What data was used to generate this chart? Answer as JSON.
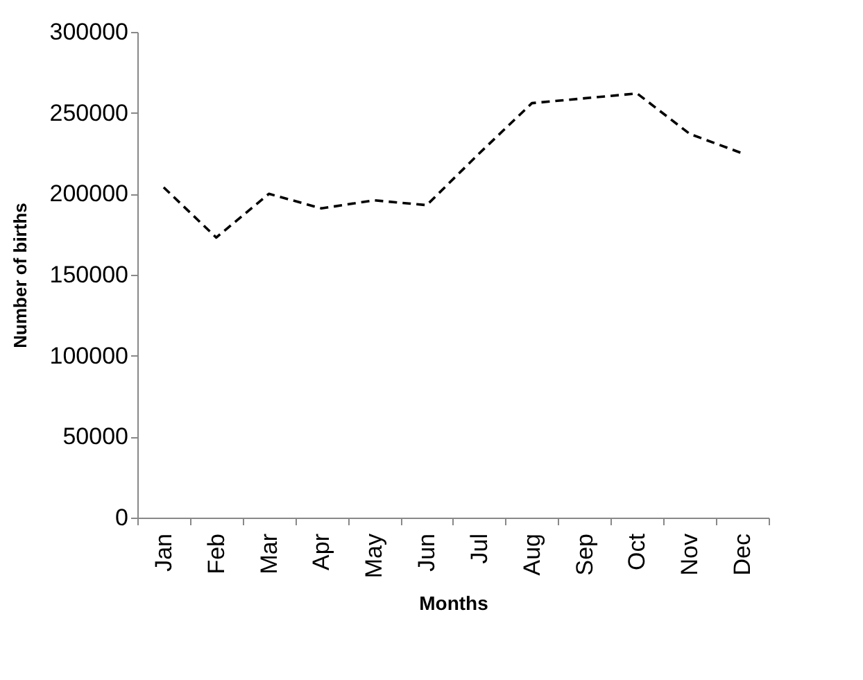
{
  "chart_data": {
    "type": "line",
    "xlabel": "Months",
    "ylabel": "Number of births",
    "categories": [
      "Jan",
      "Feb",
      "Mar",
      "Apr",
      "May",
      "Jun",
      "Jul",
      "Aug",
      "Sep",
      "Oct",
      "Nov",
      "Dec"
    ],
    "series": [
      {
        "color": "#000000",
        "values": [
          204000,
          173000,
          200000,
          191000,
          196000,
          193000,
          225000,
          256000,
          259000,
          262000,
          237000,
          225000
        ]
      }
    ],
    "ylim": [
      0,
      300000
    ],
    "yticks": [
      0,
      50000,
      100000,
      150000,
      200000,
      250000,
      300000
    ],
    "grid": false,
    "marker": "none",
    "line_style": "dashed"
  }
}
